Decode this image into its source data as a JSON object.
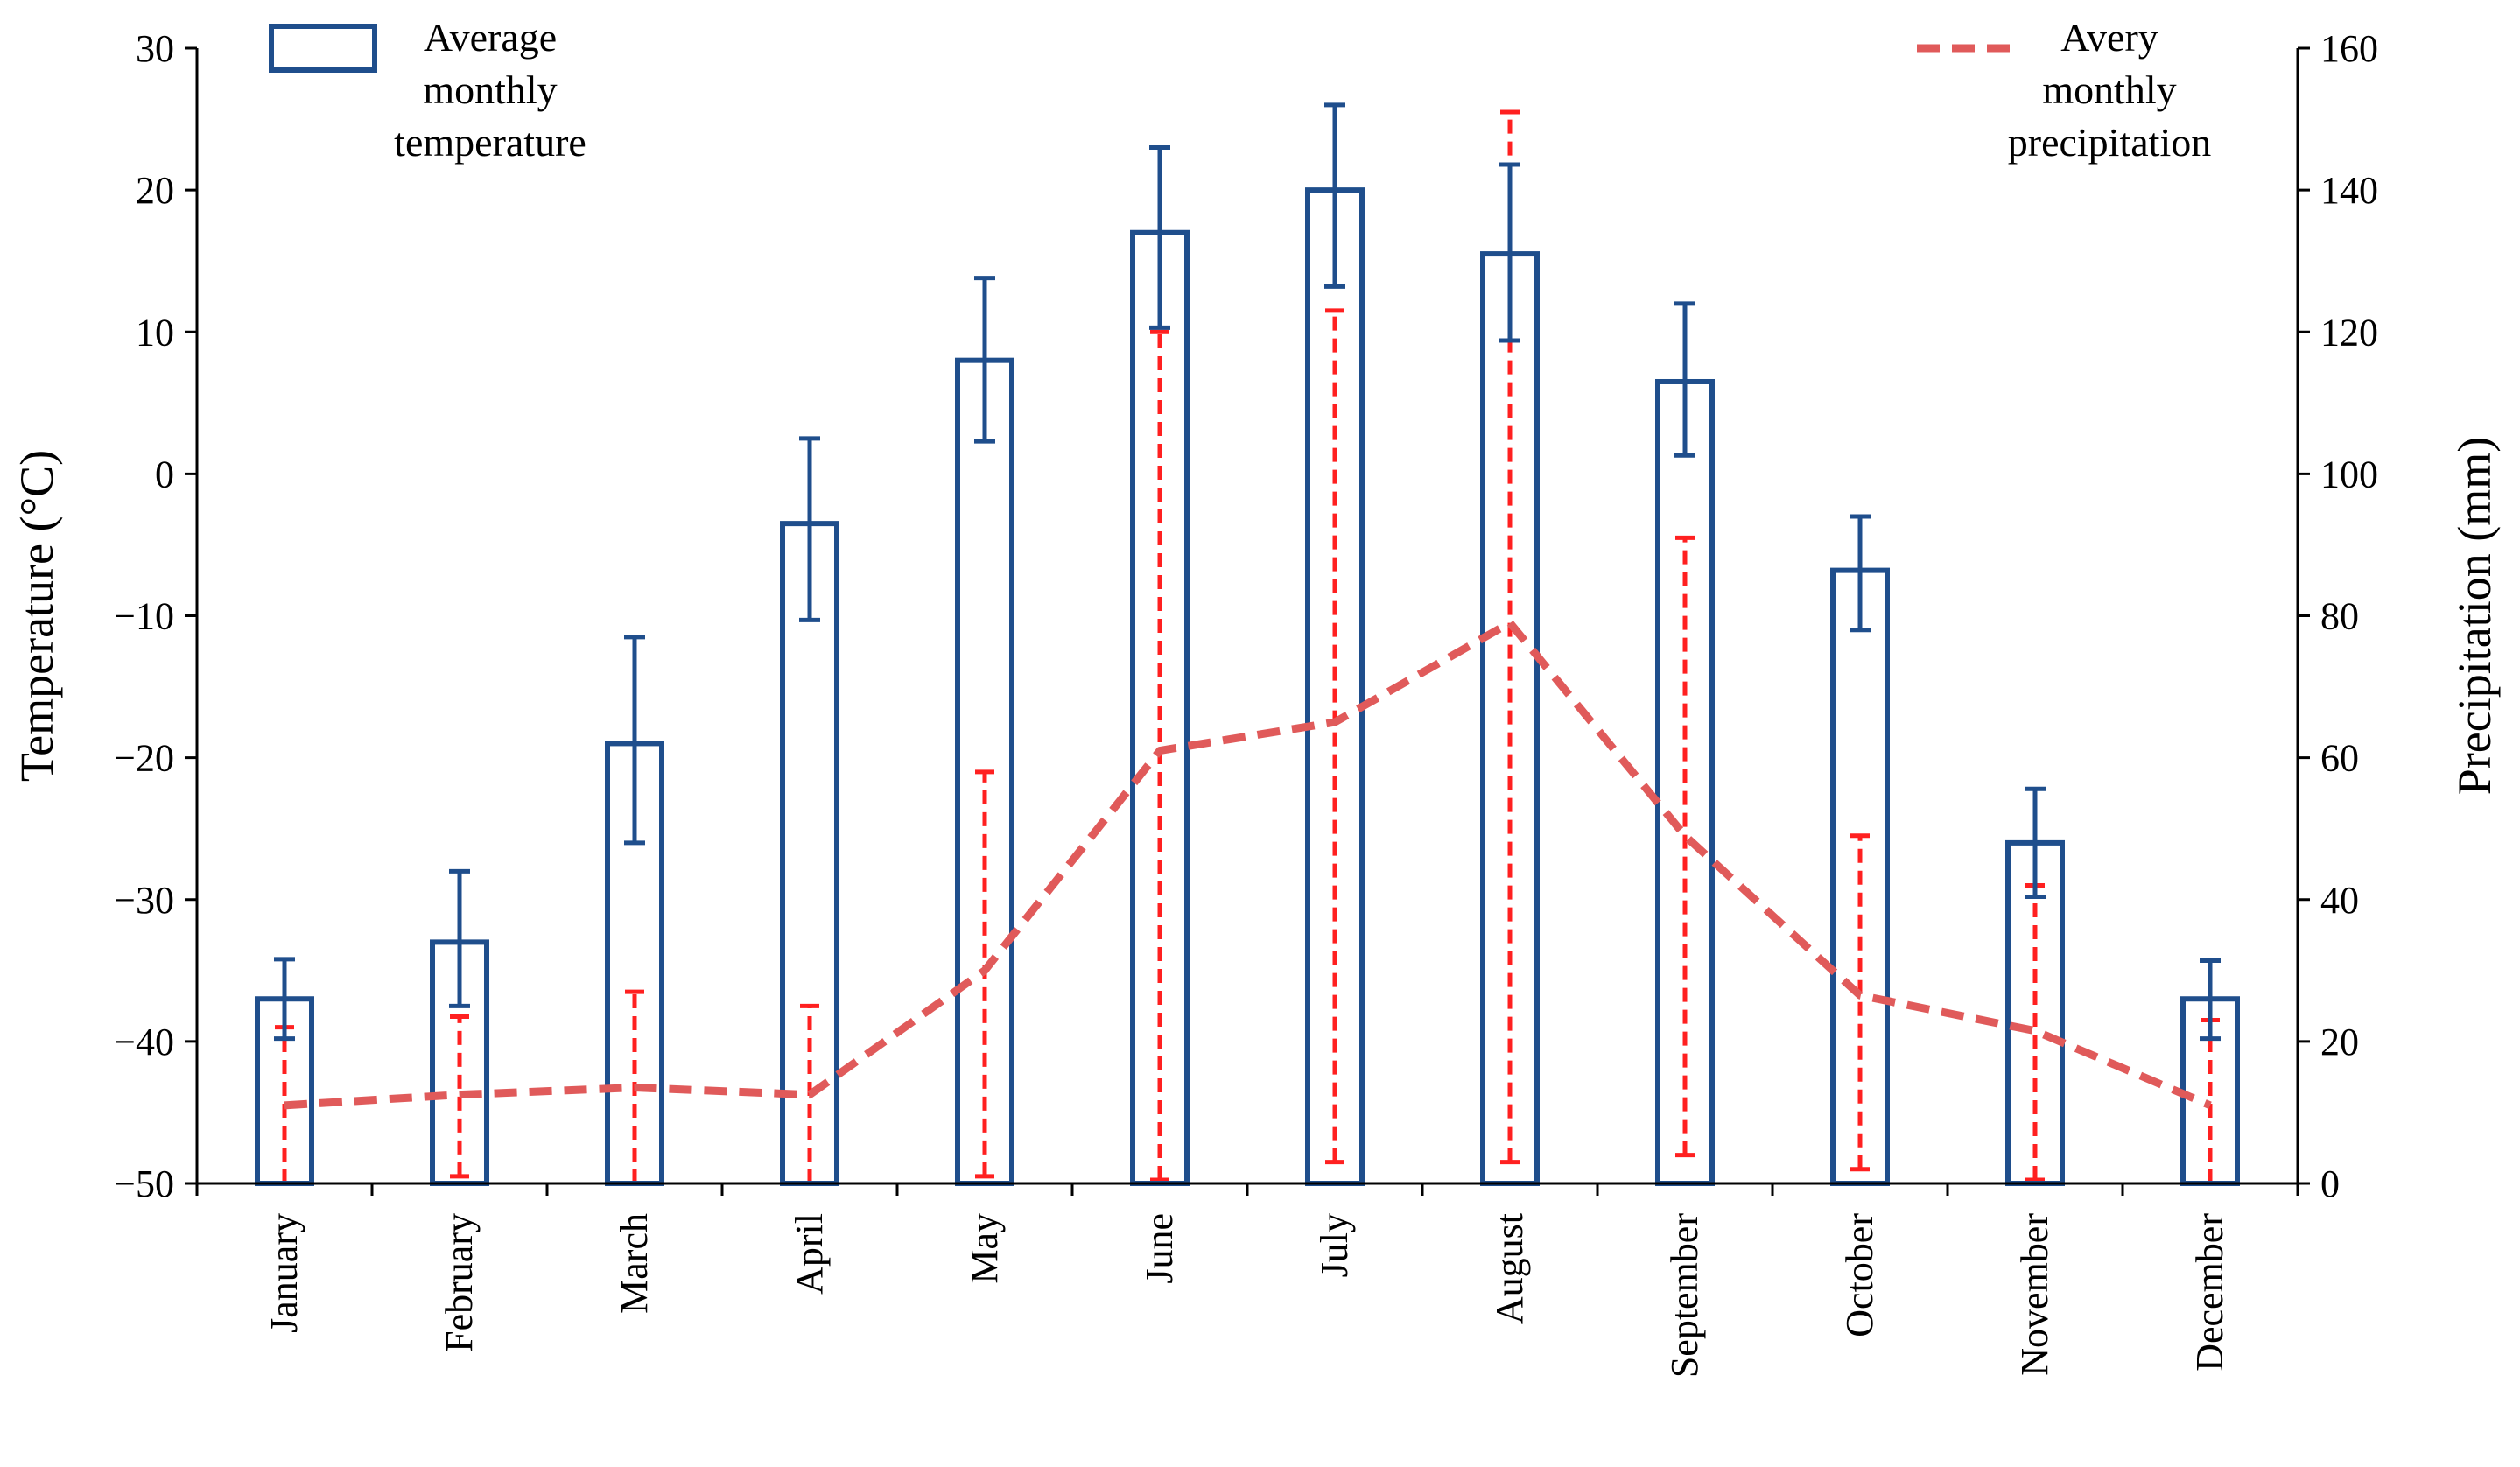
{
  "chart_data": {
    "type": "bar+line",
    "categories": [
      "January",
      "February",
      "March",
      "April",
      "May",
      "June",
      "July",
      "August",
      "September",
      "October",
      "November",
      "December"
    ],
    "series": [
      {
        "name": "Average monthly temperature",
        "axis": "left",
        "kind": "bar",
        "values": [
          -37,
          -33,
          -19,
          -3.5,
          8,
          17,
          20,
          15.5,
          6.5,
          -6.8,
          -26,
          -37
        ],
        "error_low": [
          -39.8,
          -37.5,
          -26,
          -10.3,
          2.3,
          10.3,
          13.2,
          9.4,
          1.3,
          -11,
          -29.8,
          -39.8
        ],
        "error_high": [
          -34.2,
          -28,
          -11.5,
          2.5,
          13.8,
          23,
          26,
          21.8,
          12,
          -3,
          -22.2,
          -34.3
        ],
        "color": "#1f4e8c"
      },
      {
        "name": "Avery monthly precipitation",
        "axis": "right",
        "kind": "line",
        "style": "dashed",
        "values": [
          11,
          12.5,
          13.5,
          12.5,
          30,
          61,
          65,
          79,
          49,
          26.5,
          21.5,
          11
        ],
        "error_low": [
          0,
          1,
          0,
          0,
          1,
          0.5,
          3,
          3,
          4,
          2,
          0.5,
          0
        ],
        "error_high": [
          22,
          23.5,
          27,
          25,
          58,
          120,
          123,
          151,
          91,
          49,
          42,
          23
        ],
        "color": "#e05a5a",
        "error_color": "#ff2020"
      }
    ],
    "y_left": {
      "label": "Temperature (°C)",
      "ylim": [
        -50,
        30
      ],
      "ticks": [
        30,
        20,
        10,
        0,
        -10,
        -20,
        -30,
        -40,
        -50
      ],
      "tick_labels": [
        "30",
        "20",
        "10",
        "0",
        "−10",
        "−20",
        "−30",
        "−40",
        "−50"
      ]
    },
    "y_right": {
      "label": "Precipitation (mm)",
      "ylim": [
        0,
        160
      ],
      "ticks": [
        160,
        140,
        120,
        100,
        80,
        60,
        40,
        20,
        0
      ],
      "tick_labels": [
        "160",
        "140",
        "120",
        "100",
        "80",
        "60",
        "40",
        "20",
        "0"
      ]
    },
    "legend": [
      {
        "position": "top-left",
        "lines": [
          "Average",
          "monthly",
          "temperature"
        ]
      },
      {
        "position": "top-right",
        "lines": [
          "Avery",
          "monthly",
          "precipitation"
        ]
      }
    ]
  }
}
